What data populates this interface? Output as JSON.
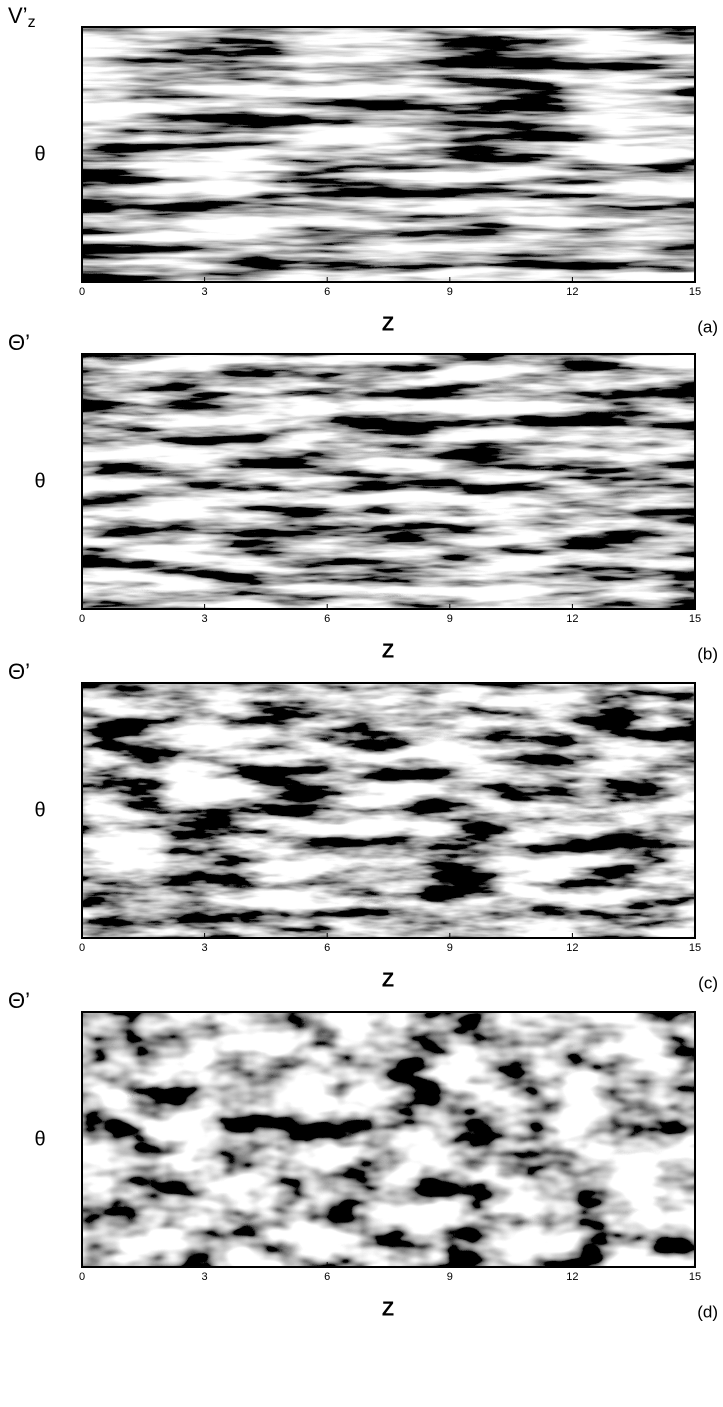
{
  "chart_data": [
    {
      "type": "contour",
      "field_label": "V’",
      "field_label_subscript": "z",
      "ylabel": "θ",
      "xlabel": "Z",
      "panel_label": "(a)",
      "xlim": [
        0,
        15
      ],
      "xticks": [
        0,
        3,
        6,
        9,
        12,
        15
      ]
    },
    {
      "type": "contour",
      "field_label": "Θ’",
      "ylabel": "θ",
      "xlabel": "Z",
      "panel_label": "(b)",
      "xlim": [
        0,
        15
      ],
      "xticks": [
        0,
        3,
        6,
        9,
        12,
        15
      ]
    },
    {
      "type": "contour",
      "field_label": "Θ’",
      "ylabel": "θ",
      "xlabel": "Z",
      "panel_label": "(c)",
      "xlim": [
        0,
        15
      ],
      "xticks": [
        0,
        3,
        6,
        9,
        12,
        15
      ]
    },
    {
      "type": "contour",
      "field_label": "Θ’",
      "ylabel": "θ",
      "xlabel": "Z",
      "panel_label": "(d)",
      "xlim": [
        0,
        15
      ],
      "xticks": [
        0,
        3,
        6,
        9,
        12,
        15
      ]
    }
  ]
}
